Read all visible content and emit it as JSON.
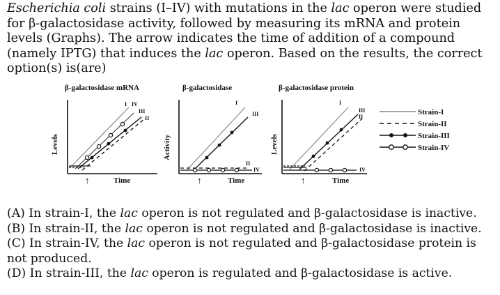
{
  "question": {
    "stem_parts": [
      {
        "t": "Escherichia coli",
        "i": true
      },
      {
        "t": " strains (I–IV) with mutations in the ",
        "i": false
      },
      {
        "t": "lac",
        "i": true
      },
      {
        "t": " operon were studied for β-galactosidase activity, followed by measuring its mRNA and protein levels (Graphs). The arrow indicates the time of addition of a compound (namely IPTG) that induces the ",
        "i": false
      },
      {
        "t": "lac",
        "i": true
      },
      {
        "t": " operon. Based on the results, the correct option(s) is(are)",
        "i": false
      }
    ]
  },
  "figure": {
    "panels": [
      {
        "title": "β-galactosidase mRNA",
        "ylabel": "Levels",
        "xlabel": "Time"
      },
      {
        "title": "β-galactosidase",
        "ylabel": "Activity",
        "xlabel": "Time"
      },
      {
        "title": "β-galactosidase protein",
        "ylabel": "Levels",
        "xlabel": "Time"
      }
    ],
    "legend": [
      {
        "label": "Strain-I",
        "style": "solid"
      },
      {
        "label": "Strain-II",
        "style": "dashed"
      },
      {
        "label": "Strain-III",
        "style": "filled-dots"
      },
      {
        "label": "Strain-IV",
        "style": "open-dots"
      }
    ],
    "curve_labels": {
      "p1": [
        "I",
        "IV",
        "III",
        "II"
      ],
      "p2": [
        "I",
        "III",
        "II",
        "IV"
      ],
      "p3": [
        "I",
        "III",
        "II",
        "IV"
      ]
    },
    "arrow_glyph": "↑"
  },
  "options": [
    [
      {
        "t": "(A) In strain-I, the ",
        "i": false
      },
      {
        "t": "lac",
        "i": true
      },
      {
        "t": " operon is not regulated and β-galactosidase is inactive.",
        "i": false
      }
    ],
    [
      {
        "t": "(B) In strain-II, the ",
        "i": false
      },
      {
        "t": "lac",
        "i": true
      },
      {
        "t": " operon is not regulated and β-galactosidase is inactive.",
        "i": false
      }
    ],
    [
      {
        "t": "(C) In strain-IV, the ",
        "i": false
      },
      {
        "t": "lac",
        "i": true
      },
      {
        "t": " operon is not regulated and β-galactosidase protein is not produced.",
        "i": false
      }
    ],
    [
      {
        "t": "(D) In strain-III, the ",
        "i": false
      },
      {
        "t": "lac",
        "i": true
      },
      {
        "t": " operon is regulated and β-galactosidase is active.",
        "i": false
      }
    ]
  ]
}
